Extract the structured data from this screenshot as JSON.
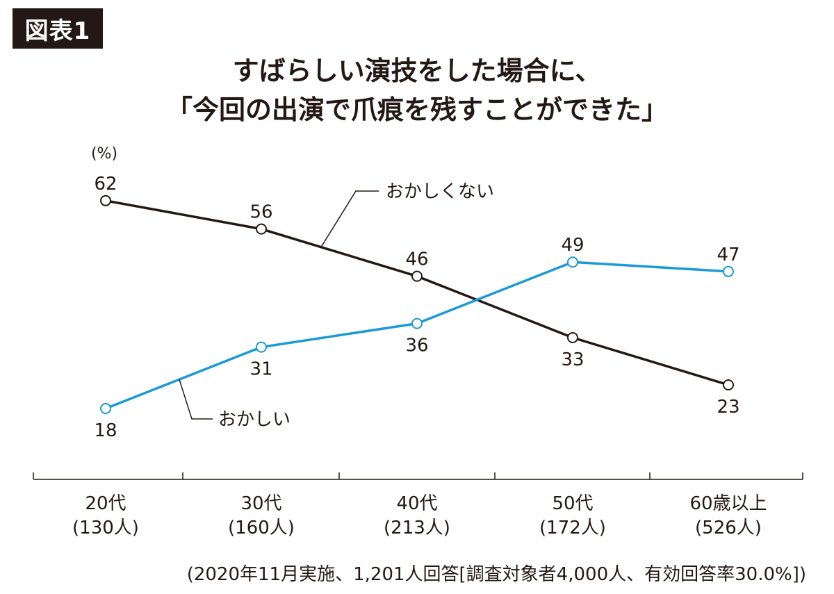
{
  "badge": "図表1",
  "chart_data": {
    "type": "line",
    "title": [
      "すばらしい演技をした場合に、",
      "「今回の出演で爪痕を残すことができた」"
    ],
    "ylabel": "(%)",
    "ylim": [
      0,
      70
    ],
    "categories": [
      {
        "label": "20代",
        "sub": "(130人)"
      },
      {
        "label": "30代",
        "sub": "(160人)"
      },
      {
        "label": "40代",
        "sub": "(213人)"
      },
      {
        "label": "50代",
        "sub": "(172人)"
      },
      {
        "label": "60歳以上",
        "sub": "(526人)"
      }
    ],
    "series": [
      {
        "name": "おかしくない",
        "values": [
          62,
          56,
          46,
          33,
          23
        ],
        "color": "#231815"
      },
      {
        "name": "おかしい",
        "values": [
          18,
          31,
          36,
          49,
          47
        ],
        "color": "#1a9ad6"
      }
    ],
    "grid": false
  },
  "footnote": "(2020年11月実施、1,201人回答[調査対象者4,000人、有効回答率30.0%])"
}
